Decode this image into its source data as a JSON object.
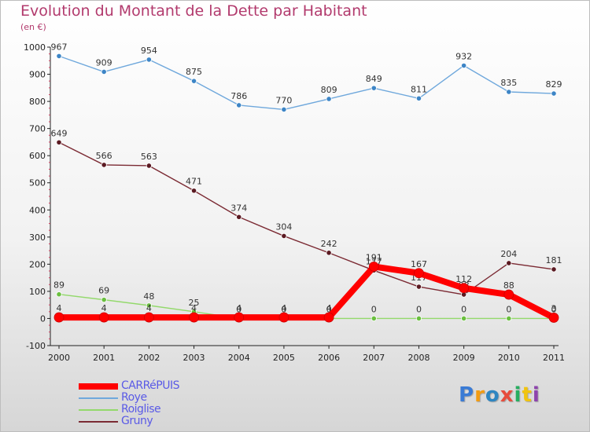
{
  "chart_data": {
    "type": "line",
    "title": "Evolution du Montant de la Dette par Habitant",
    "subtitle": "(en €)",
    "x": [
      "2000",
      "2001",
      "2002",
      "2003",
      "2004",
      "2005",
      "2006",
      "2007",
      "2008",
      "2009",
      "2010",
      "2011"
    ],
    "ylim": [
      -100,
      1000
    ],
    "yticks": [
      -100,
      0,
      100,
      200,
      300,
      400,
      500,
      600,
      700,
      800,
      900,
      1000
    ],
    "grid": false,
    "legend_position": "bottom-left",
    "series": [
      {
        "name": "Roye",
        "color": "#6fa8dc",
        "marker": "#3d85c6",
        "values": [
          967,
          909,
          954,
          875,
          786,
          770,
          809,
          849,
          811,
          932,
          835,
          829
        ]
      },
      {
        "name": "Gruny",
        "color": "#7b2a33",
        "marker": "#5b1a22",
        "values": [
          649,
          566,
          563,
          471,
          374,
          304,
          242,
          177,
          117,
          88,
          204,
          181
        ]
      },
      {
        "name": "Roiglise",
        "color": "#93d96b",
        "marker": "#6abf3f",
        "values": [
          89,
          69,
          48,
          25,
          0,
          0,
          0,
          0,
          0,
          0,
          0,
          0
        ]
      },
      {
        "name": "CARRéPUIS",
        "color": "#ff0000",
        "marker": "#ff0000",
        "values": [
          4,
          4,
          4,
          4,
          4,
          4,
          4,
          191,
          167,
          112,
          88,
          3
        ]
      }
    ]
  },
  "legend": [
    {
      "name": "CARRéPUIS",
      "color": "#ff0000",
      "thickness": 8
    },
    {
      "name": "Roye",
      "color": "#6fa8dc",
      "thickness": 2
    },
    {
      "name": "Roiglise",
      "color": "#93d96b",
      "thickness": 2
    },
    {
      "name": "Gruny",
      "color": "#7b2a33",
      "thickness": 2
    }
  ],
  "brand": {
    "letters": [
      "P",
      "r",
      "o",
      "x",
      "i",
      "t",
      "i"
    ],
    "colors": [
      "#3a7bd5",
      "#f39c12",
      "#2e86c1",
      "#e74c3c",
      "#27ae60",
      "#f1c40f",
      "#8e44ad"
    ]
  }
}
